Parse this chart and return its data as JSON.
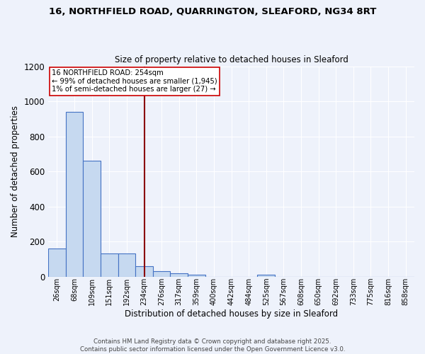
{
  "title_line1": "16, NORTHFIELD ROAD, QUARRINGTON, SLEAFORD, NG34 8RT",
  "title_line2": "Size of property relative to detached houses in Sleaford",
  "xlabel": "Distribution of detached houses by size in Sleaford",
  "ylabel": "Number of detached properties",
  "bar_labels": [
    "26sqm",
    "68sqm",
    "109sqm",
    "151sqm",
    "192sqm",
    "234sqm",
    "276sqm",
    "317sqm",
    "359sqm",
    "400sqm",
    "442sqm",
    "484sqm",
    "525sqm",
    "567sqm",
    "608sqm",
    "650sqm",
    "692sqm",
    "733sqm",
    "775sqm",
    "816sqm",
    "858sqm"
  ],
  "bar_values": [
    160,
    940,
    660,
    130,
    130,
    60,
    30,
    20,
    10,
    0,
    0,
    0,
    10,
    0,
    0,
    0,
    0,
    0,
    0,
    0,
    0
  ],
  "bar_color": "#c6d9f0",
  "bar_edgecolor": "#4472c4",
  "background_color": "#eef2fb",
  "grid_color": "#ffffff",
  "vline_x": 5.0,
  "vline_color": "#8b0000",
  "annotation_text": "16 NORTHFIELD ROAD: 254sqm\n← 99% of detached houses are smaller (1,945)\n1% of semi-detached houses are larger (27) →",
  "annotation_box_facecolor": "#ffffff",
  "annotation_box_edgecolor": "#cc0000",
  "ylim": [
    0,
    1200
  ],
  "yticks": [
    0,
    200,
    400,
    600,
    800,
    1000,
    1200
  ],
  "footer_line1": "Contains HM Land Registry data © Crown copyright and database right 2025.",
  "footer_line2": "Contains public sector information licensed under the Open Government Licence v3.0."
}
